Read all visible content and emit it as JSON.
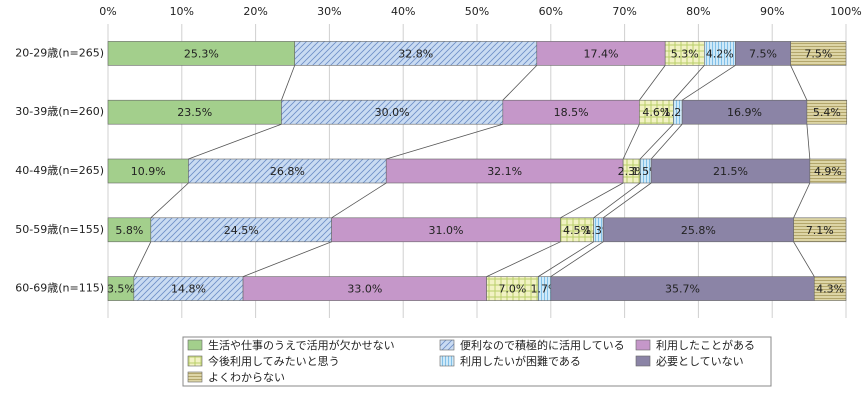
{
  "chart_data": {
    "type": "stacked-bar-horizontal",
    "categories": [
      "20-29歳(n=265)",
      "30-39歳(n=260)",
      "40-49歳(n=265)",
      "50-59歳(n=155)",
      "60-69歳(n=115)"
    ],
    "xlim": [
      0,
      100
    ],
    "xticks": [
      {
        "value": 0,
        "label": "0%"
      },
      {
        "value": 10,
        "label": "10%"
      },
      {
        "value": 20,
        "label": "20%"
      },
      {
        "value": 30,
        "label": "30%"
      },
      {
        "value": 40,
        "label": "40%"
      },
      {
        "value": 50,
        "label": "50%"
      },
      {
        "value": 60,
        "label": "60%"
      },
      {
        "value": 70,
        "label": "70%"
      },
      {
        "value": 80,
        "label": "80%"
      },
      {
        "value": 90,
        "label": "90%"
      },
      {
        "value": 100,
        "label": "100%"
      }
    ],
    "grid": true,
    "series": [
      {
        "name": "生活や仕事のうえで活用が欠かせない",
        "color": "#a3cf8c",
        "pattern": "none",
        "values": [
          25.3,
          23.5,
          10.9,
          5.8,
          3.5
        ],
        "value_labels": [
          "25.3%",
          "23.5%",
          "10.9%",
          "5.8%",
          "3.5%"
        ]
      },
      {
        "name": "便利なので積極的に活用している",
        "color": "#c9dbf2",
        "pattern": "diagonal",
        "values": [
          32.8,
          30.0,
          26.8,
          24.5,
          14.8
        ],
        "value_labels": [
          "32.8%",
          "30.0%",
          "26.8%",
          "24.5%",
          "14.8%"
        ]
      },
      {
        "name": "利用したことがある",
        "color": "#c597c9",
        "pattern": "none",
        "values": [
          17.4,
          18.5,
          32.1,
          31.0,
          33.0
        ],
        "value_labels": [
          "17.4%",
          "18.5%",
          "32.1%",
          "31.0%",
          "33.0%"
        ]
      },
      {
        "name": "今後利用してみたいと思う",
        "color": "#f2f2c4",
        "pattern": "grid",
        "values": [
          5.3,
          4.6,
          2.3,
          4.5,
          7.0
        ],
        "value_labels": [
          "5.3%",
          "4.6%",
          "2.3%",
          "4.5%",
          "7.0%"
        ]
      },
      {
        "name": "利用したいが困難である",
        "color": "#cfe9f8",
        "pattern": "vertical",
        "values": [
          4.2,
          1.2,
          1.5,
          1.3,
          1.7
        ],
        "value_labels": [
          "4.2%",
          "1.2%",
          "1.5%",
          "1.3%",
          "1.7%"
        ]
      },
      {
        "name": "必要としていない",
        "color": "#8b84a6",
        "pattern": "none",
        "values": [
          7.5,
          16.9,
          21.5,
          25.8,
          35.7
        ],
        "value_labels": [
          "7.5%",
          "16.9%",
          "21.5%",
          "25.8%",
          "35.7%"
        ]
      },
      {
        "name": "よくわからない",
        "color": "#ddd5a6",
        "pattern": "horizontal",
        "values": [
          7.5,
          5.4,
          4.9,
          7.1,
          4.3
        ],
        "value_labels": [
          "7.5%",
          "5.4%",
          "4.9%",
          "7.1%",
          "4.3%"
        ]
      }
    ],
    "legend": "bottom"
  }
}
